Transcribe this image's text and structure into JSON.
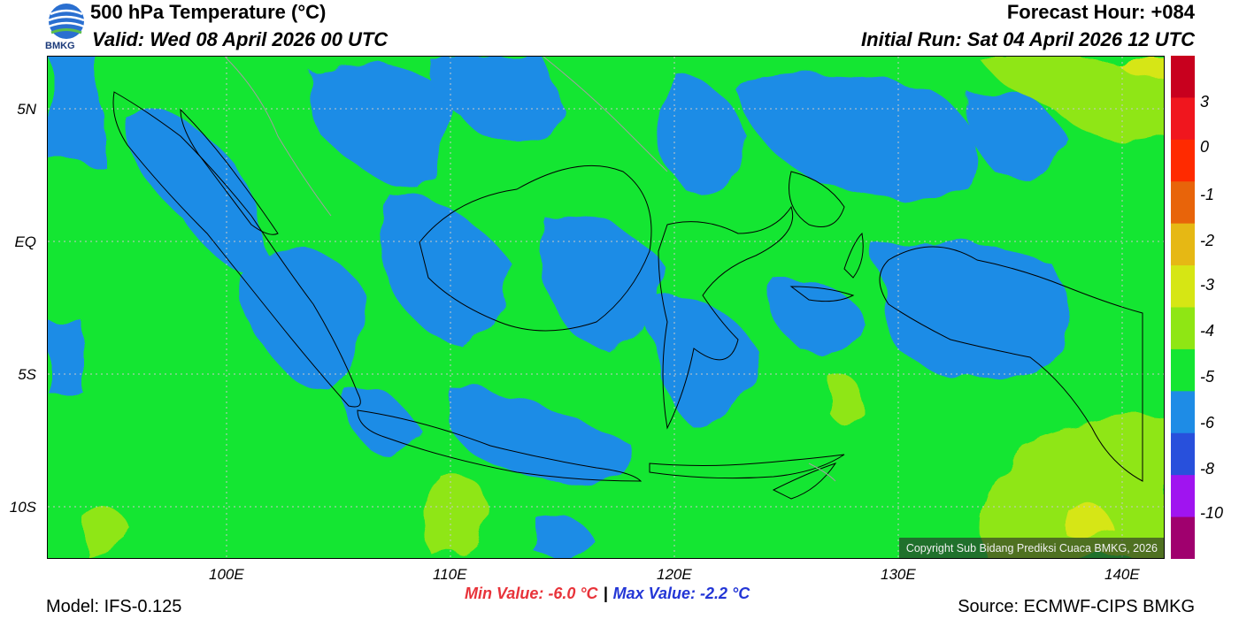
{
  "header": {
    "title": "500 hPa Temperature (°C)",
    "valid": "Valid: Wed 08 April 2026 00 UTC",
    "forecast_hour": "Forecast Hour: +084",
    "initial_run": "Initial Run: Sat 04 April 2026 12 UTC",
    "logo_text": "BMKG"
  },
  "map": {
    "lon_range": [
      92,
      142
    ],
    "lat_range": [
      -12,
      7
    ],
    "lat_labels": [
      {
        "value": 5,
        "text": "5N"
      },
      {
        "value": 0,
        "text": "EQ"
      },
      {
        "value": -5,
        "text": "5S"
      },
      {
        "value": -10,
        "text": "10S"
      }
    ],
    "lon_labels": [
      {
        "value": 100,
        "text": "100E"
      },
      {
        "value": 110,
        "text": "110E"
      },
      {
        "value": 120,
        "text": "120E"
      },
      {
        "value": 130,
        "text": "130E"
      },
      {
        "value": 140,
        "text": "140E"
      }
    ],
    "copyright": "Copyright Sub Bidang Prediksi Cuaca BMKG, 2026"
  },
  "colorbar": {
    "labels": [
      "3",
      "0",
      "-1",
      "-2",
      "-3",
      "-4",
      "-5",
      "-6",
      "-8",
      "-10"
    ],
    "colors": [
      "#c8001e",
      "#f0161e",
      "#ff2a00",
      "#e8640a",
      "#e6b814",
      "#d6e614",
      "#8fe614",
      "#14e632",
      "#1e8ce6",
      "#2850dc",
      "#a014f0",
      "#a0006e"
    ]
  },
  "stats": {
    "min": "Min Value: -6.0 °C",
    "separator": "|",
    "max": "Max Value: -2.2 °C"
  },
  "footer": {
    "model": "Model: IFS-0.125",
    "source": "Source: ECMWF-CIPS BMKG"
  }
}
